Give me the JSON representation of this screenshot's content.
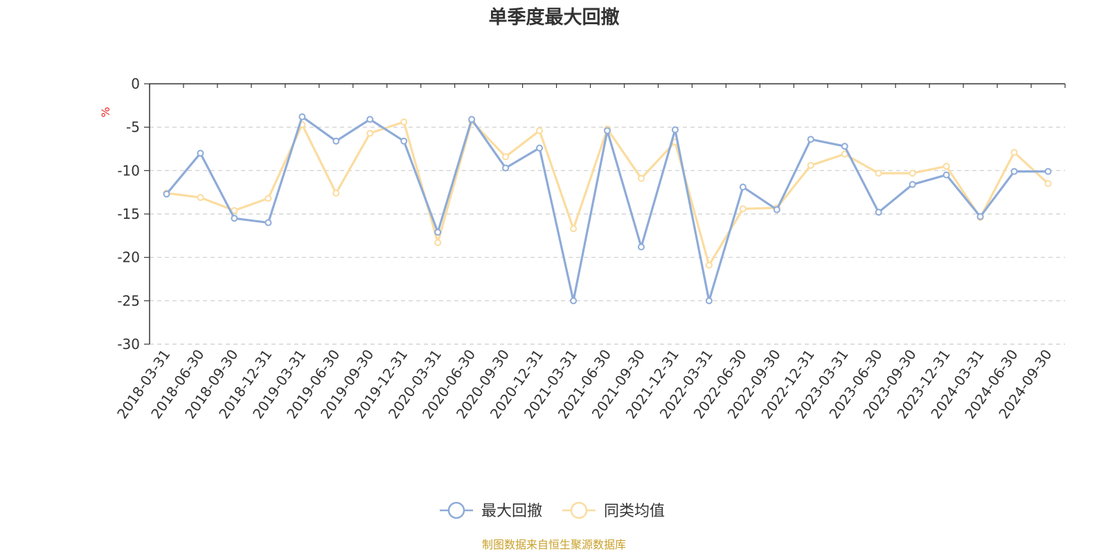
{
  "chart_data": {
    "type": "line",
    "title": "单季度最大回撤",
    "ylabel": "%",
    "ylim": [
      -30,
      0
    ],
    "yticks": [
      0,
      -5,
      -10,
      -15,
      -20,
      -25,
      -30
    ],
    "grid": true,
    "legend_position": "bottom-center",
    "categories": [
      "2018-03-31",
      "2018-06-30",
      "2018-09-30",
      "2018-12-31",
      "2019-03-31",
      "2019-06-30",
      "2019-09-30",
      "2019-12-31",
      "2020-03-31",
      "2020-06-30",
      "2020-09-30",
      "2020-12-31",
      "2021-03-31",
      "2021-06-30",
      "2021-09-30",
      "2021-12-31",
      "2022-03-31",
      "2022-06-30",
      "2022-09-30",
      "2022-12-31",
      "2023-03-31",
      "2023-06-30",
      "2023-09-30",
      "2023-12-31",
      "2024-03-31",
      "2024-06-30",
      "2024-09-30"
    ],
    "series": [
      {
        "name": "最大回撤",
        "color": "#8eabd8",
        "values": [
          -12.7,
          -8.0,
          -15.5,
          -16.0,
          -3.8,
          -6.6,
          -4.1,
          -6.6,
          -17.1,
          -4.1,
          -9.7,
          -7.4,
          -25.0,
          -5.4,
          -18.8,
          -5.3,
          -25.0,
          -11.9,
          -14.5,
          -6.4,
          -7.2,
          -14.8,
          -11.6,
          -10.5,
          -15.3,
          -10.1,
          -10.1
        ]
      },
      {
        "name": "同类均值",
        "color": "#fbdc9f",
        "values": [
          -12.6,
          -13.1,
          -14.6,
          -13.2,
          -4.7,
          -12.6,
          -5.7,
          -4.4,
          -18.3,
          -4.3,
          -8.4,
          -5.4,
          -16.7,
          -5.2,
          -10.9,
          -6.7,
          -20.9,
          -14.4,
          -14.3,
          -9.4,
          -8.1,
          -10.3,
          -10.3,
          -9.5,
          -15.4,
          -7.9,
          -11.5
        ]
      }
    ]
  },
  "colors": {
    "unit": "#ee2222",
    "source": "#c8a02a",
    "grid": "#cccccc",
    "axis": "#333333"
  },
  "source_text": "制图数据来自恒生聚源数据库"
}
